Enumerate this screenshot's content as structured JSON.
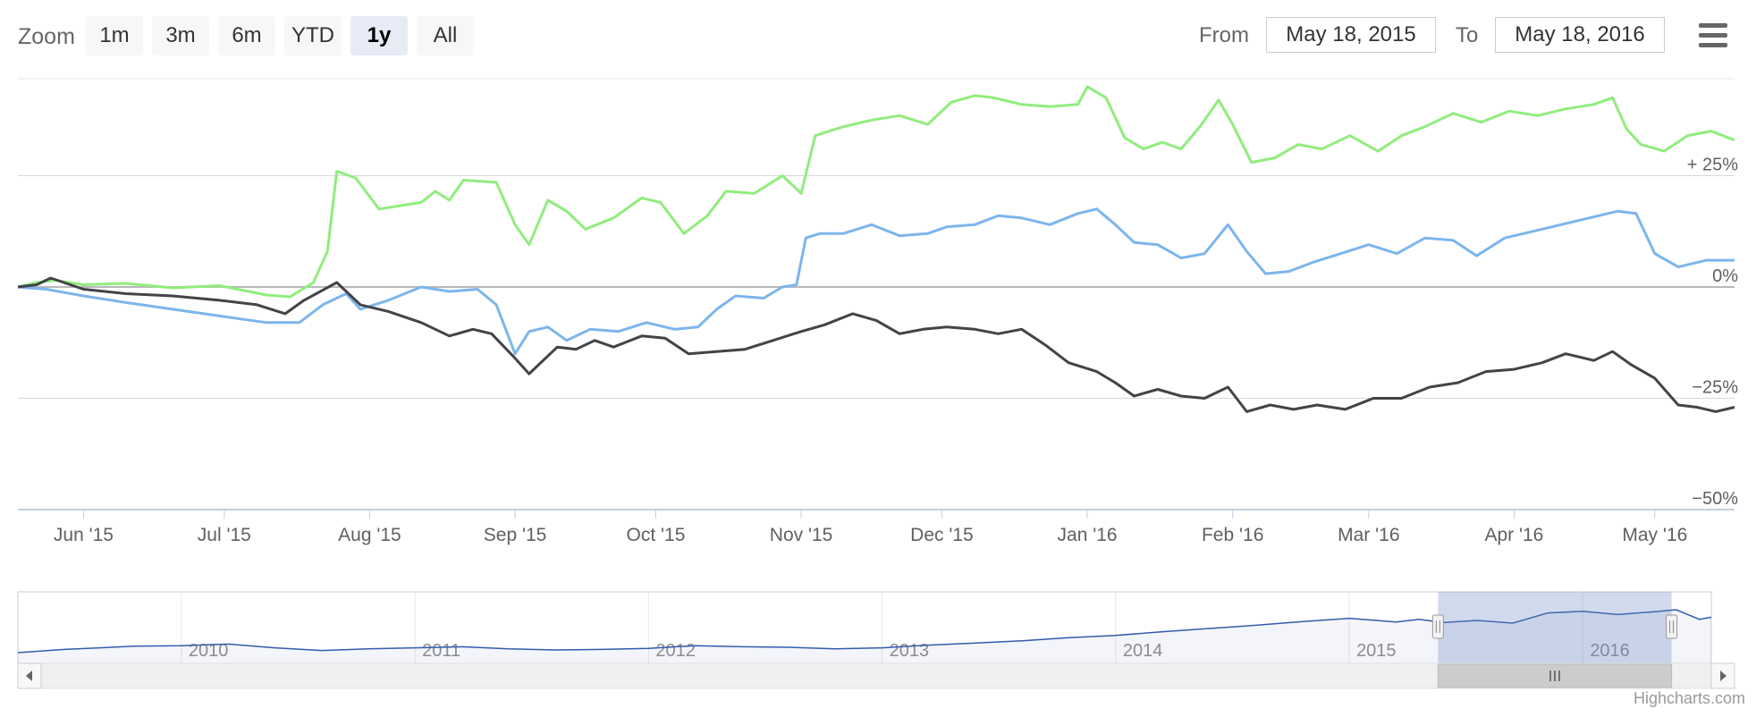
{
  "toolbar": {
    "zoom_label": "Zoom",
    "zoom_buttons": [
      "1m",
      "3m",
      "6m",
      "YTD",
      "1y",
      "All"
    ],
    "active_zoom": "1y",
    "from_label": "From",
    "from_value": "May 18, 2015",
    "to_label": "To",
    "to_value": "May 18, 2016",
    "menu_icon": "hamburger-menu-icon"
  },
  "credits": "Highcharts.com",
  "chart_data": {
    "type": "line",
    "compare": "percent",
    "grid": true,
    "y_axis": {
      "position": "right",
      "ticks": [
        {
          "value": 25,
          "label": "+ 25%"
        },
        {
          "value": 0,
          "label": "0%"
        },
        {
          "value": -25,
          "label": "−25%"
        },
        {
          "value": -50,
          "label": "−50%"
        }
      ],
      "ylim": [
        -50,
        50
      ]
    },
    "x_axis": {
      "range": [
        "2015-05-18",
        "2016-05-18"
      ],
      "ticks": [
        {
          "date": "2015-06-01",
          "label": "Jun '15"
        },
        {
          "date": "2015-07-01",
          "label": "Jul '15"
        },
        {
          "date": "2015-08-01",
          "label": "Aug '15"
        },
        {
          "date": "2015-09-01",
          "label": "Sep '15"
        },
        {
          "date": "2015-10-01",
          "label": "Oct '15"
        },
        {
          "date": "2015-11-01",
          "label": "Nov '15"
        },
        {
          "date": "2015-12-01",
          "label": "Dec '15"
        },
        {
          "date": "2016-01-01",
          "label": "Jan '16"
        },
        {
          "date": "2016-02-01",
          "label": "Feb '16"
        },
        {
          "date": "2016-03-01",
          "label": "Mar '16"
        },
        {
          "date": "2016-04-01",
          "label": "Apr '16"
        },
        {
          "date": "2016-05-01",
          "label": "May '16"
        }
      ]
    },
    "series": [
      {
        "color": "#90ed7d",
        "points": [
          [
            "2015-05-18",
            0
          ],
          [
            "2015-05-22",
            1.0
          ],
          [
            "2015-05-26",
            1.5
          ],
          [
            "2015-06-01",
            0.5
          ],
          [
            "2015-06-10",
            0.8
          ],
          [
            "2015-06-20",
            -0.2
          ],
          [
            "2015-06-30",
            0.3
          ],
          [
            "2015-07-10",
            -1.8
          ],
          [
            "2015-07-15",
            -2.2
          ],
          [
            "2015-07-20",
            1.0
          ],
          [
            "2015-07-23",
            8.0
          ],
          [
            "2015-07-25",
            26.0
          ],
          [
            "2015-07-29",
            24.5
          ],
          [
            "2015-08-03",
            17.5
          ],
          [
            "2015-08-12",
            19.0
          ],
          [
            "2015-08-15",
            21.5
          ],
          [
            "2015-08-18",
            19.5
          ],
          [
            "2015-08-21",
            24.0
          ],
          [
            "2015-08-28",
            23.5
          ],
          [
            "2015-09-01",
            14.0
          ],
          [
            "2015-09-04",
            9.5
          ],
          [
            "2015-09-08",
            19.5
          ],
          [
            "2015-09-12",
            17.0
          ],
          [
            "2015-09-16",
            13.0
          ],
          [
            "2015-09-22",
            15.5
          ],
          [
            "2015-09-28",
            20.0
          ],
          [
            "2015-10-02",
            19.0
          ],
          [
            "2015-10-07",
            12.0
          ],
          [
            "2015-10-12",
            16.0
          ],
          [
            "2015-10-16",
            21.5
          ],
          [
            "2015-10-22",
            21.0
          ],
          [
            "2015-10-28",
            25.0
          ],
          [
            "2015-11-01",
            21.0
          ],
          [
            "2015-11-04",
            34.0
          ],
          [
            "2015-11-10",
            36.0
          ],
          [
            "2015-11-16",
            37.5
          ],
          [
            "2015-11-22",
            38.5
          ],
          [
            "2015-11-28",
            36.5
          ],
          [
            "2015-12-03",
            41.5
          ],
          [
            "2015-12-08",
            43.0
          ],
          [
            "2015-12-12",
            42.5
          ],
          [
            "2015-12-18",
            41.0
          ],
          [
            "2015-12-24",
            40.5
          ],
          [
            "2015-12-30",
            41.0
          ],
          [
            "2016-01-01",
            45.0
          ],
          [
            "2016-01-05",
            42.5
          ],
          [
            "2016-01-09",
            33.5
          ],
          [
            "2016-01-13",
            31.0
          ],
          [
            "2016-01-17",
            32.5
          ],
          [
            "2016-01-21",
            31.0
          ],
          [
            "2016-01-25",
            36.0
          ],
          [
            "2016-01-29",
            42.0
          ],
          [
            "2016-02-01",
            36.5
          ],
          [
            "2016-02-05",
            28.0
          ],
          [
            "2016-02-10",
            29.0
          ],
          [
            "2016-02-15",
            32.0
          ],
          [
            "2016-02-20",
            31.0
          ],
          [
            "2016-02-26",
            34.0
          ],
          [
            "2016-03-03",
            30.5
          ],
          [
            "2016-03-08",
            34.0
          ],
          [
            "2016-03-13",
            36.0
          ],
          [
            "2016-03-19",
            39.0
          ],
          [
            "2016-03-25",
            37.0
          ],
          [
            "2016-03-31",
            39.5
          ],
          [
            "2016-04-06",
            38.5
          ],
          [
            "2016-04-12",
            40.0
          ],
          [
            "2016-04-18",
            41.0
          ],
          [
            "2016-04-22",
            42.5
          ],
          [
            "2016-04-25",
            35.5
          ],
          [
            "2016-04-28",
            32.0
          ],
          [
            "2016-05-03",
            30.5
          ],
          [
            "2016-05-08",
            34.0
          ],
          [
            "2016-05-13",
            35.0
          ],
          [
            "2016-05-18",
            33.0
          ]
        ]
      },
      {
        "color": "#7cb5ec",
        "points": [
          [
            "2015-05-18",
            0
          ],
          [
            "2015-05-24",
            -0.5
          ],
          [
            "2015-06-01",
            -2.0
          ],
          [
            "2015-06-10",
            -3.5
          ],
          [
            "2015-06-20",
            -5.0
          ],
          [
            "2015-06-30",
            -6.5
          ],
          [
            "2015-07-10",
            -8.0
          ],
          [
            "2015-07-17",
            -8.0
          ],
          [
            "2015-07-22",
            -4.0
          ],
          [
            "2015-07-27",
            -1.5
          ],
          [
            "2015-07-30",
            -5.0
          ],
          [
            "2015-08-05",
            -3.0
          ],
          [
            "2015-08-12",
            0.0
          ],
          [
            "2015-08-18",
            -1.0
          ],
          [
            "2015-08-24",
            -0.5
          ],
          [
            "2015-08-28",
            -4.0
          ],
          [
            "2015-09-01",
            -15.0
          ],
          [
            "2015-09-04",
            -10.0
          ],
          [
            "2015-09-08",
            -9.0
          ],
          [
            "2015-09-12",
            -12.0
          ],
          [
            "2015-09-17",
            -9.5
          ],
          [
            "2015-09-23",
            -10.0
          ],
          [
            "2015-09-29",
            -8.0
          ],
          [
            "2015-10-05",
            -9.5
          ],
          [
            "2015-10-10",
            -9.0
          ],
          [
            "2015-10-14",
            -5.0
          ],
          [
            "2015-10-18",
            -2.0
          ],
          [
            "2015-10-24",
            -2.5
          ],
          [
            "2015-10-28",
            0.0
          ],
          [
            "2015-10-31",
            0.5
          ],
          [
            "2015-11-02",
            11.0
          ],
          [
            "2015-11-05",
            12.0
          ],
          [
            "2015-11-10",
            12.0
          ],
          [
            "2015-11-16",
            14.0
          ],
          [
            "2015-11-22",
            11.5
          ],
          [
            "2015-11-28",
            12.0
          ],
          [
            "2015-12-02",
            13.5
          ],
          [
            "2015-12-08",
            14.0
          ],
          [
            "2015-12-13",
            16.0
          ],
          [
            "2015-12-18",
            15.5
          ],
          [
            "2015-12-24",
            14.0
          ],
          [
            "2015-12-30",
            16.5
          ],
          [
            "2016-01-03",
            17.5
          ],
          [
            "2016-01-07",
            14.0
          ],
          [
            "2016-01-11",
            10.0
          ],
          [
            "2016-01-16",
            9.5
          ],
          [
            "2016-01-21",
            6.5
          ],
          [
            "2016-01-26",
            7.5
          ],
          [
            "2016-01-31",
            14.0
          ],
          [
            "2016-02-04",
            8.0
          ],
          [
            "2016-02-08",
            3.0
          ],
          [
            "2016-02-13",
            3.5
          ],
          [
            "2016-02-18",
            5.5
          ],
          [
            "2016-02-24",
            7.5
          ],
          [
            "2016-03-01",
            9.5
          ],
          [
            "2016-03-07",
            7.5
          ],
          [
            "2016-03-13",
            11.0
          ],
          [
            "2016-03-19",
            10.5
          ],
          [
            "2016-03-24",
            7.0
          ],
          [
            "2016-03-30",
            11.0
          ],
          [
            "2016-04-05",
            12.5
          ],
          [
            "2016-04-11",
            14.0
          ],
          [
            "2016-04-17",
            15.5
          ],
          [
            "2016-04-23",
            17.0
          ],
          [
            "2016-04-27",
            16.5
          ],
          [
            "2016-05-01",
            7.5
          ],
          [
            "2016-05-06",
            4.5
          ],
          [
            "2016-05-12",
            6.0
          ],
          [
            "2016-05-18",
            6.0
          ]
        ]
      },
      {
        "color": "#434348",
        "points": [
          [
            "2015-05-18",
            0
          ],
          [
            "2015-05-22",
            0.5
          ],
          [
            "2015-05-25",
            2.0
          ],
          [
            "2015-06-01",
            -0.5
          ],
          [
            "2015-06-10",
            -1.5
          ],
          [
            "2015-06-20",
            -2.0
          ],
          [
            "2015-06-30",
            -3.0
          ],
          [
            "2015-07-08",
            -4.0
          ],
          [
            "2015-07-14",
            -6.0
          ],
          [
            "2015-07-18",
            -3.0
          ],
          [
            "2015-07-25",
            1.0
          ],
          [
            "2015-07-30",
            -4.0
          ],
          [
            "2015-08-05",
            -5.5
          ],
          [
            "2015-08-12",
            -8.0
          ],
          [
            "2015-08-18",
            -11.0
          ],
          [
            "2015-08-23",
            -9.5
          ],
          [
            "2015-08-27",
            -10.5
          ],
          [
            "2015-09-01",
            -16.0
          ],
          [
            "2015-09-04",
            -19.5
          ],
          [
            "2015-09-10",
            -13.5
          ],
          [
            "2015-09-14",
            -14.0
          ],
          [
            "2015-09-18",
            -12.0
          ],
          [
            "2015-09-22",
            -13.5
          ],
          [
            "2015-09-28",
            -11.0
          ],
          [
            "2015-10-03",
            -11.5
          ],
          [
            "2015-10-08",
            -15.0
          ],
          [
            "2015-10-14",
            -14.5
          ],
          [
            "2015-10-20",
            -14.0
          ],
          [
            "2015-10-26",
            -12.0
          ],
          [
            "2015-11-01",
            -10.0
          ],
          [
            "2015-11-06",
            -8.5
          ],
          [
            "2015-11-12",
            -6.0
          ],
          [
            "2015-11-17",
            -7.5
          ],
          [
            "2015-11-22",
            -10.5
          ],
          [
            "2015-11-27",
            -9.5
          ],
          [
            "2015-12-02",
            -9.0
          ],
          [
            "2015-12-08",
            -9.5
          ],
          [
            "2015-12-13",
            -10.5
          ],
          [
            "2015-12-18",
            -9.5
          ],
          [
            "2015-12-23",
            -13.0
          ],
          [
            "2015-12-28",
            -17.0
          ],
          [
            "2016-01-03",
            -19.0
          ],
          [
            "2016-01-07",
            -21.5
          ],
          [
            "2016-01-11",
            -24.5
          ],
          [
            "2016-01-16",
            -23.0
          ],
          [
            "2016-01-21",
            -24.5
          ],
          [
            "2016-01-26",
            -25.0
          ],
          [
            "2016-01-31",
            -22.5
          ],
          [
            "2016-02-04",
            -28.0
          ],
          [
            "2016-02-09",
            -26.5
          ],
          [
            "2016-02-14",
            -27.5
          ],
          [
            "2016-02-19",
            -26.5
          ],
          [
            "2016-02-25",
            -27.5
          ],
          [
            "2016-03-02",
            -25.0
          ],
          [
            "2016-03-08",
            -25.0
          ],
          [
            "2016-03-14",
            -22.5
          ],
          [
            "2016-03-20",
            -21.5
          ],
          [
            "2016-03-26",
            -19.0
          ],
          [
            "2016-04-01",
            -18.5
          ],
          [
            "2016-04-07",
            -17.0
          ],
          [
            "2016-04-12",
            -15.0
          ],
          [
            "2016-04-18",
            -16.5
          ],
          [
            "2016-04-22",
            -14.5
          ],
          [
            "2016-04-26",
            -17.5
          ],
          [
            "2016-05-01",
            -20.5
          ],
          [
            "2016-05-06",
            -26.5
          ],
          [
            "2016-05-10",
            -27.0
          ],
          [
            "2016-05-14",
            -28.0
          ],
          [
            "2016-05-18",
            -27.0
          ]
        ]
      }
    ]
  },
  "navigator": {
    "range_years": [
      2009.3,
      2016.55
    ],
    "ticks": [
      {
        "year": 2010,
        "label": "2010"
      },
      {
        "year": 2011,
        "label": "2011"
      },
      {
        "year": 2012,
        "label": "2012"
      },
      {
        "year": 2013,
        "label": "2013"
      },
      {
        "year": 2014,
        "label": "2014"
      },
      {
        "year": 2015,
        "label": "2015"
      },
      {
        "year": 2016,
        "label": "2016"
      }
    ],
    "selected_range_years": [
      2015.38,
      2016.38
    ],
    "series_color": "#335cad",
    "series_points": [
      [
        2009.3,
        0.0
      ],
      [
        2009.5,
        0.6
      ],
      [
        2009.8,
        1.2
      ],
      [
        2010.0,
        1.3
      ],
      [
        2010.2,
        1.6
      ],
      [
        2010.4,
        0.9
      ],
      [
        2010.6,
        0.4
      ],
      [
        2010.8,
        0.7
      ],
      [
        2011.0,
        0.9
      ],
      [
        2011.2,
        1.1
      ],
      [
        2011.4,
        0.7
      ],
      [
        2011.6,
        0.5
      ],
      [
        2011.8,
        0.6
      ],
      [
        2012.0,
        0.8
      ],
      [
        2012.2,
        1.3
      ],
      [
        2012.4,
        1.1
      ],
      [
        2012.6,
        1.0
      ],
      [
        2012.8,
        0.7
      ],
      [
        2013.0,
        0.9
      ],
      [
        2013.2,
        1.4
      ],
      [
        2013.4,
        1.8
      ],
      [
        2013.6,
        2.2
      ],
      [
        2013.8,
        2.8
      ],
      [
        2014.0,
        3.2
      ],
      [
        2014.2,
        3.9
      ],
      [
        2014.4,
        4.5
      ],
      [
        2014.6,
        5.1
      ],
      [
        2014.8,
        5.8
      ],
      [
        2015.0,
        6.4
      ],
      [
        2015.2,
        5.7
      ],
      [
        2015.3,
        6.2
      ],
      [
        2015.4,
        5.6
      ],
      [
        2015.55,
        6.0
      ],
      [
        2015.7,
        5.5
      ],
      [
        2015.85,
        7.4
      ],
      [
        2016.0,
        7.7
      ],
      [
        2016.15,
        7.1
      ],
      [
        2016.3,
        7.6
      ],
      [
        2016.4,
        8.0
      ],
      [
        2016.5,
        6.2
      ],
      [
        2016.55,
        6.6
      ]
    ]
  }
}
